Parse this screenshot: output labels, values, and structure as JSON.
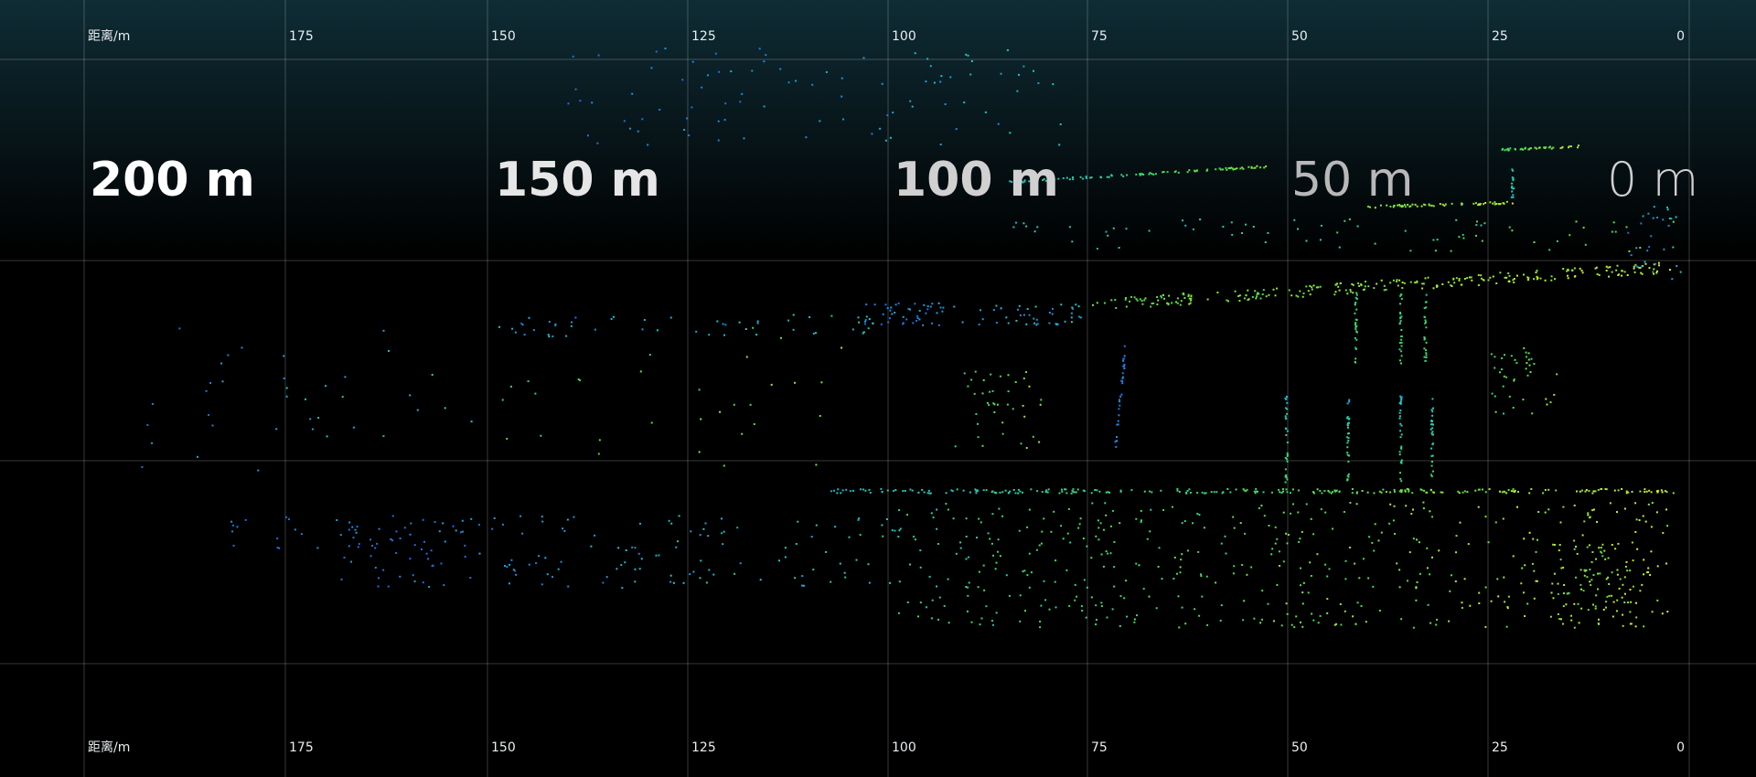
{
  "axis_top": {
    "unit_label": "距离/m",
    "ticks": [
      "175",
      "150",
      "125",
      "100",
      "75",
      "50",
      "25",
      "0"
    ]
  },
  "axis_bottom": {
    "unit_label": "距离/m",
    "ticks": [
      "175",
      "150",
      "125",
      "100",
      "75",
      "50",
      "25",
      "0"
    ]
  },
  "distance_labels": [
    "200 m",
    "150 m",
    "100 m",
    "50 m",
    "0 m"
  ]
}
